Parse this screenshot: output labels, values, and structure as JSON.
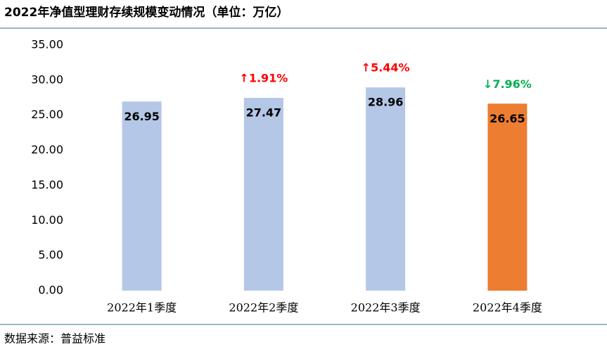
{
  "chart_data": {
    "type": "bar",
    "title": "2022年净值型理财存续规模变动情况（单位：万亿）",
    "categories": [
      "2022年1季度",
      "2022年2季度",
      "2022年3季度",
      "2022年4季度"
    ],
    "values": [
      26.95,
      27.47,
      28.96,
      26.65
    ],
    "colors": [
      "#b4c7e7",
      "#b4c7e7",
      "#b4c7e7",
      "#ed7d31"
    ],
    "ylim": [
      0,
      35
    ],
    "yticks": [
      {
        "value": 0,
        "label": "0.00"
      },
      {
        "value": 5,
        "label": "5.00"
      },
      {
        "value": 10,
        "label": "10.00"
      },
      {
        "value": 15,
        "label": "15.00"
      },
      {
        "value": 20,
        "label": "20.00"
      },
      {
        "value": 25,
        "label": "25.00"
      },
      {
        "value": 30,
        "label": "30.00"
      },
      {
        "value": 35,
        "label": "35.00"
      }
    ],
    "grid": false,
    "annotations": [
      {
        "category": "2022年2季度",
        "text": "↑1.91%",
        "color": "#ff0000"
      },
      {
        "category": "2022年3季度",
        "text": "↑5.44%",
        "color": "#ff0000"
      },
      {
        "category": "2022年4季度",
        "text": "↓7.96%",
        "color": "#00b050"
      }
    ],
    "source": "数据来源：普益标准"
  }
}
